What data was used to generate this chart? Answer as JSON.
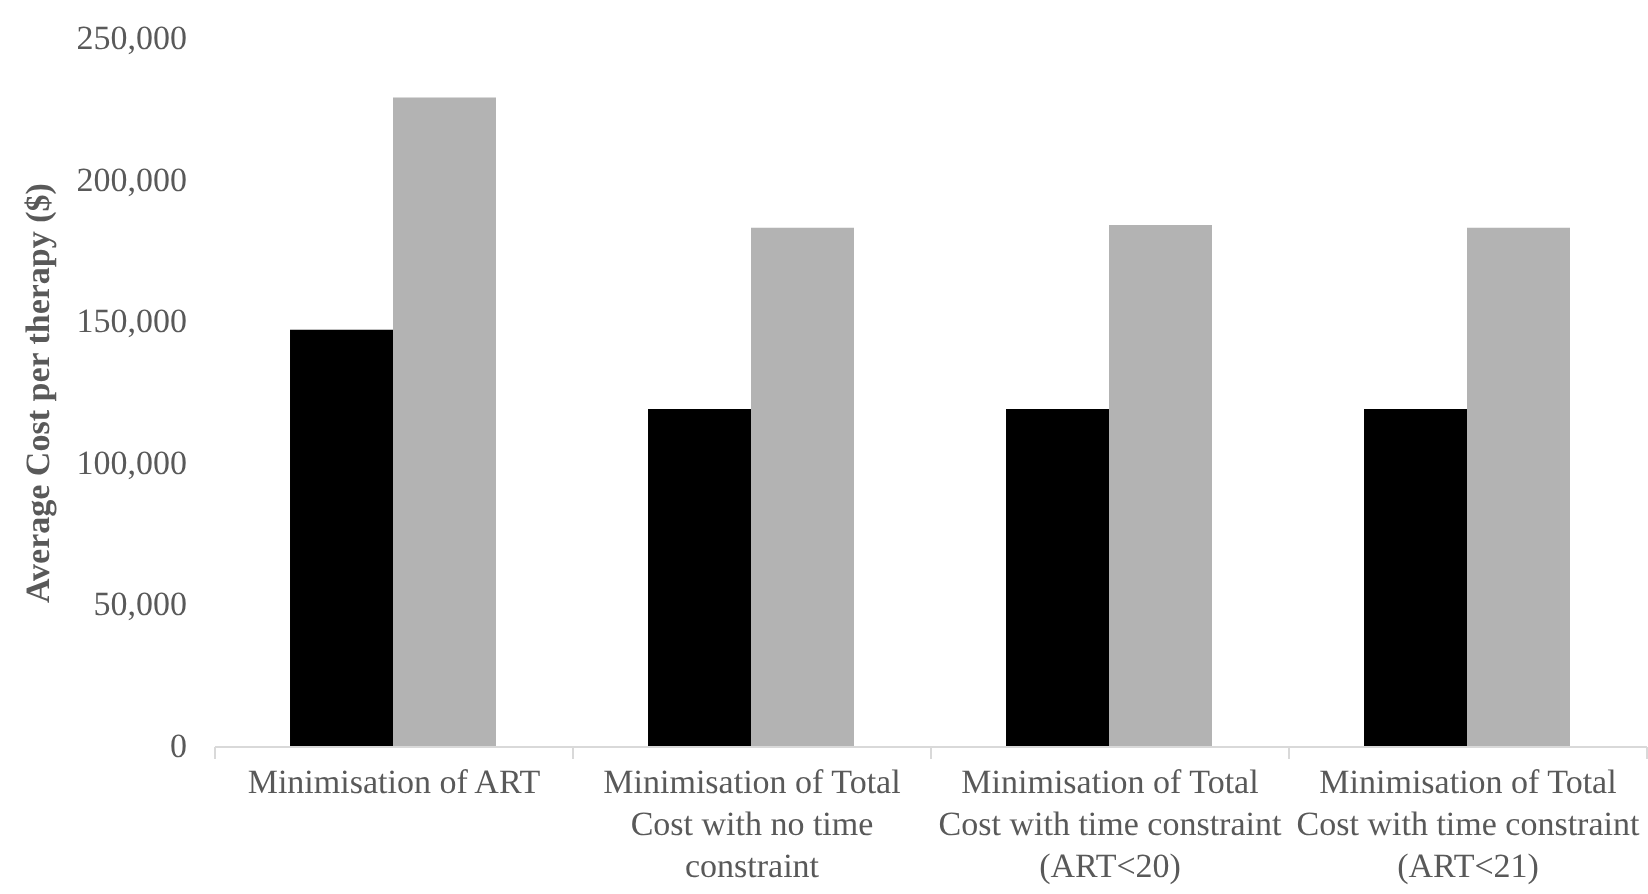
{
  "chart_data": {
    "type": "bar",
    "ylabel": "Average Cost per therapy ($)",
    "categories": [
      "Minimisation of ART",
      "Minimisation of Total Cost with no time constraint",
      "Minimisation of Total Cost with time constraint (ART<20)",
      "Minimisation of Total Cost with time constraint (ART<21)"
    ],
    "series": [
      {
        "color": "#000000",
        "values": [
          147000,
          119000,
          119000,
          119000
        ]
      },
      {
        "color": "#b3b3b3",
        "values": [
          229000,
          183000,
          184000,
          183000
        ]
      }
    ],
    "ylim": [
      0,
      250000
    ],
    "yticks": [
      0,
      {
        "value": 50000,
        "label": "50,000"
      },
      {
        "value": 100000,
        "label": "100,000"
      },
      {
        "value": 150000,
        "label": "150,000"
      },
      {
        "value": 200000,
        "label": "200,000"
      },
      {
        "value": 250000,
        "label": "250,000"
      }
    ]
  }
}
